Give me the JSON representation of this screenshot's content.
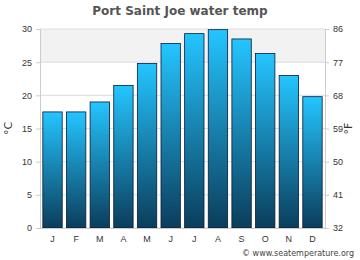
{
  "chart_data": {
    "type": "bar",
    "title": "Port Saint Joe water temp",
    "categories": [
      "J",
      "F",
      "M",
      "A",
      "M",
      "J",
      "J",
      "A",
      "S",
      "O",
      "N",
      "D"
    ],
    "values": [
      17.5,
      17.5,
      19,
      21.5,
      24.8,
      27.8,
      29.3,
      29.9,
      28.5,
      26.3,
      23,
      19.8
    ],
    "color": "#1a8fd6",
    "ylabel": "°C",
    "y2label": "°F",
    "ylim": [
      0,
      30
    ],
    "yticks": [
      0,
      5,
      10,
      15,
      20,
      25,
      30
    ],
    "y2lim": [
      32,
      86
    ],
    "y2ticks": [
      32,
      41,
      50,
      59,
      68,
      77,
      86
    ],
    "grid": true,
    "annotations": [
      "© www.seatemperature.org"
    ]
  }
}
